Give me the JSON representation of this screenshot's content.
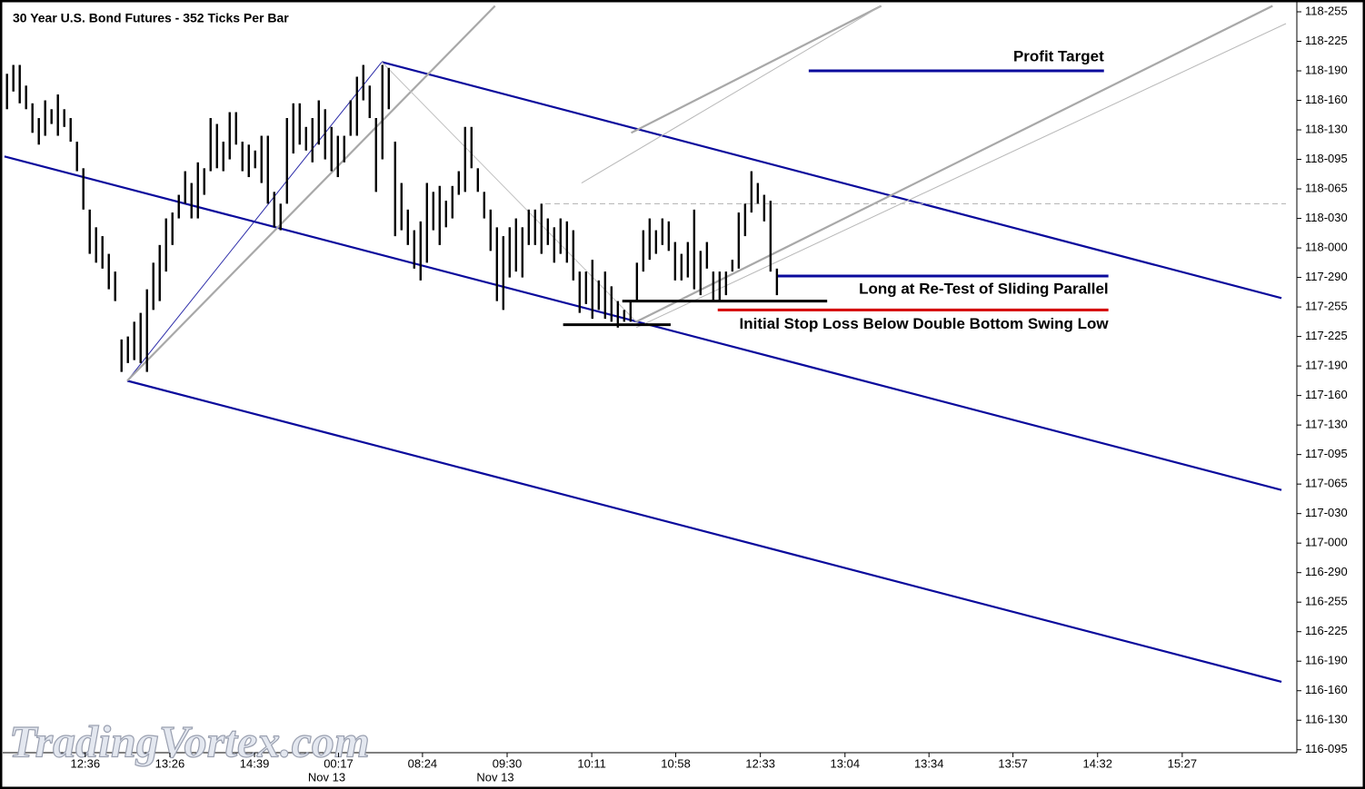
{
  "chart_data": {
    "type": "ohlc",
    "title": "30 Year U.S. Bond Futures - 352 Ticks Per Bar",
    "watermark": "TradingVortex.com",
    "bar_color": "#000000",
    "xlim": [
      -1.1,
      201
    ],
    "ylim": [
      116.29,
      118.84
    ],
    "xticks": [
      {
        "value": 12.3,
        "label": "12:36"
      },
      {
        "value": 25.6,
        "label": "13:26"
      },
      {
        "value": 38.9,
        "label": "14:39"
      },
      {
        "value": 52.1,
        "label": "00:17"
      },
      {
        "value": 65.3,
        "label": "08:24"
      },
      {
        "value": 78.6,
        "label": "09:30"
      },
      {
        "value": 91.9,
        "label": "10:11"
      },
      {
        "value": 105.1,
        "label": "10:58"
      },
      {
        "value": 118.4,
        "label": "12:33"
      },
      {
        "value": 131.7,
        "label": "13:04"
      },
      {
        "value": 144.9,
        "label": "13:34"
      },
      {
        "value": 158.1,
        "label": "13:57"
      },
      {
        "value": 171.4,
        "label": "14:32"
      },
      {
        "value": 184.7,
        "label": "15:27"
      }
    ],
    "date_labels": [
      {
        "value": 52.1,
        "label": "Nov 13"
      },
      {
        "value": 78.6,
        "label": "Nov 13"
      }
    ],
    "yticks": [
      {
        "value": 118.8,
        "label": "118-255"
      },
      {
        "value": 118.7,
        "label": "118-225"
      },
      {
        "value": 118.6,
        "label": "118-190"
      },
      {
        "value": 118.5,
        "label": "118-160"
      },
      {
        "value": 118.4,
        "label": "118-130"
      },
      {
        "value": 118.3,
        "label": "118-095"
      },
      {
        "value": 118.2,
        "label": "118-065"
      },
      {
        "value": 118.1,
        "label": "118-030"
      },
      {
        "value": 118.0,
        "label": "118-000"
      },
      {
        "value": 117.9,
        "label": "117-290"
      },
      {
        "value": 117.8,
        "label": "117-255"
      },
      {
        "value": 117.7,
        "label": "117-225"
      },
      {
        "value": 117.6,
        "label": "117-190"
      },
      {
        "value": 117.5,
        "label": "117-160"
      },
      {
        "value": 117.4,
        "label": "117-130"
      },
      {
        "value": 117.3,
        "label": "117-095"
      },
      {
        "value": 117.2,
        "label": "117-065"
      },
      {
        "value": 117.1,
        "label": "117-030"
      },
      {
        "value": 117.0,
        "label": "117-000"
      },
      {
        "value": 116.9,
        "label": "116-290"
      },
      {
        "value": 116.8,
        "label": "116-255"
      },
      {
        "value": 116.7,
        "label": "116-225"
      },
      {
        "value": 116.6,
        "label": "116-190"
      },
      {
        "value": 116.5,
        "label": "116-160"
      },
      {
        "value": 116.4,
        "label": "116-130"
      },
      {
        "value": 116.3,
        "label": "116-095"
      }
    ],
    "high": [
      118.59,
      118.62,
      118.62,
      118.55,
      118.49,
      118.44,
      118.5,
      118.47,
      118.52,
      118.47,
      118.44,
      118.36,
      118.27,
      118.13,
      118.07,
      118.04,
      117.98,
      117.92,
      117.69,
      117.7,
      117.75,
      117.78,
      117.86,
      117.95,
      118.01,
      118.1,
      118.12,
      118.18,
      118.26,
      118.22,
      118.29,
      118.27,
      118.44,
      118.42,
      118.36,
      118.46,
      118.46,
      118.36,
      118.35,
      118.33,
      118.38,
      118.38,
      118.19,
      118.15,
      118.44,
      118.49,
      118.49,
      118.41,
      118.44,
      118.5,
      118.47,
      118.41,
      118.38,
      118.38,
      118.5,
      118.58,
      118.62,
      118.55,
      118.44,
      118.62,
      118.61,
      118.36,
      118.22,
      118.13,
      118.06,
      118.09,
      118.22,
      118.19,
      118.21,
      118.16,
      118.21,
      118.26,
      118.41,
      118.41,
      118.27,
      118.19,
      118.13,
      118.07,
      118.04,
      118.07,
      118.1,
      118.07,
      118.13,
      118.13,
      118.15,
      118.1,
      118.07,
      118.1,
      118.09,
      118.06,
      117.92,
      117.92,
      117.96,
      117.89,
      117.92,
      117.87,
      117.82,
      117.79,
      117.82,
      117.95,
      118.06,
      118.1,
      118.06,
      118.1,
      118.09,
      118.02,
      117.98,
      118.02,
      118.13,
      117.99,
      118.02,
      117.92,
      117.92,
      117.92,
      117.96,
      118.12,
      118.15,
      118.26,
      118.22,
      118.18,
      118.16,
      117.93
    ],
    "low": [
      118.47,
      118.53,
      118.49,
      118.47,
      118.39,
      118.35,
      118.38,
      118.42,
      118.38,
      118.41,
      118.36,
      118.26,
      118.13,
      117.98,
      117.95,
      117.93,
      117.86,
      117.82,
      117.58,
      117.61,
      117.62,
      117.61,
      117.58,
      117.79,
      117.82,
      117.92,
      118.01,
      118.1,
      118.15,
      118.1,
      118.1,
      118.18,
      118.26,
      118.27,
      118.26,
      118.3,
      118.35,
      118.26,
      118.24,
      118.27,
      118.22,
      118.15,
      118.07,
      118.06,
      118.15,
      118.32,
      118.35,
      118.33,
      118.29,
      118.35,
      118.3,
      118.26,
      118.24,
      118.29,
      118.38,
      118.38,
      118.5,
      118.44,
      118.19,
      118.3,
      118.47,
      118.04,
      118.06,
      118.01,
      117.93,
      117.89,
      117.95,
      118.06,
      118.01,
      118.07,
      118.1,
      118.18,
      118.19,
      118.27,
      118.19,
      118.1,
      117.99,
      117.82,
      117.79,
      117.9,
      117.92,
      117.9,
      118.01,
      118.01,
      117.98,
      118.01,
      117.95,
      117.98,
      117.95,
      117.89,
      117.78,
      117.81,
      117.76,
      117.79,
      117.76,
      117.75,
      117.73,
      117.75,
      117.75,
      117.82,
      117.92,
      117.96,
      117.98,
      118.01,
      117.99,
      117.89,
      117.89,
      117.9,
      117.86,
      117.84,
      117.93,
      117.82,
      117.82,
      117.84,
      117.92,
      117.93,
      118.04,
      118.12,
      118.15,
      118.09,
      117.92,
      117.84
    ],
    "lines": [
      {
        "color": "#0a0a9c",
        "x": [
          58.9,
          200.3
        ],
        "y": [
          118.63,
          117.83
        ]
      },
      {
        "color": "#0a0a9c",
        "x": [
          -0.4,
          200.3
        ],
        "y": [
          118.31,
          117.18
        ]
      },
      {
        "color": "#0a0a9c",
        "x": [
          18.9,
          200.3
        ],
        "y": [
          117.55,
          116.53
        ]
      },
      {
        "color": "#2a2aa8",
        "x": [
          18.9,
          58.9
        ],
        "y": [
          117.55,
          118.63
        ]
      },
      {
        "color": "#a8a8a8",
        "x": [
          18.9,
          76.7
        ],
        "y": [
          117.55,
          118.82
        ]
      },
      {
        "color": "#a8a8a8",
        "x": [
          98.9,
          198.9
        ],
        "y": [
          117.75,
          118.82
        ]
      },
      {
        "color": "#a8a8a8",
        "x": [
          98.1,
          137.4
        ],
        "y": [
          118.39,
          118.82
        ]
      },
      {
        "color": "#b8b8b8",
        "x": [
          90.3,
          137.4
        ],
        "y": [
          118.22,
          118.82
        ]
      },
      {
        "color": "#b8b8b8",
        "x": [
          98.9,
          201
        ],
        "y": [
          117.73,
          118.76
        ]
      },
      {
        "color": "#c0c0c0",
        "x": [
          58.9,
          98.9
        ],
        "y": [
          118.63,
          117.75
        ]
      },
      {
        "color": "#b0b0b0",
        "dashed": true,
        "x": [
          84.6,
          201
        ],
        "y": [
          118.15,
          118.15
        ]
      },
      {
        "color": "#0a0a9c",
        "x": [
          126,
          172.4
        ],
        "y": [
          118.6,
          118.6
        ],
        "label": "Profit Target",
        "label_side": "above"
      },
      {
        "color": "#0a0a9c",
        "x": [
          121,
          173.1
        ],
        "y": [
          117.905,
          117.905
        ],
        "label": "Long at Re-Test of Sliding Parallel",
        "label_side": "below"
      },
      {
        "color": "#000000",
        "x": [
          96.7,
          128.9
        ],
        "y": [
          117.82,
          117.82
        ]
      },
      {
        "color": "#d40000",
        "x": [
          111.7,
          173.1
        ],
        "y": [
          117.79,
          117.79
        ]
      },
      {
        "color": "#000000",
        "x": [
          87.4,
          104.3
        ],
        "y": [
          117.74,
          117.74
        ],
        "label": "Initial Stop Loss Below Double Bottom Swing Low",
        "label_side": "right"
      }
    ]
  }
}
